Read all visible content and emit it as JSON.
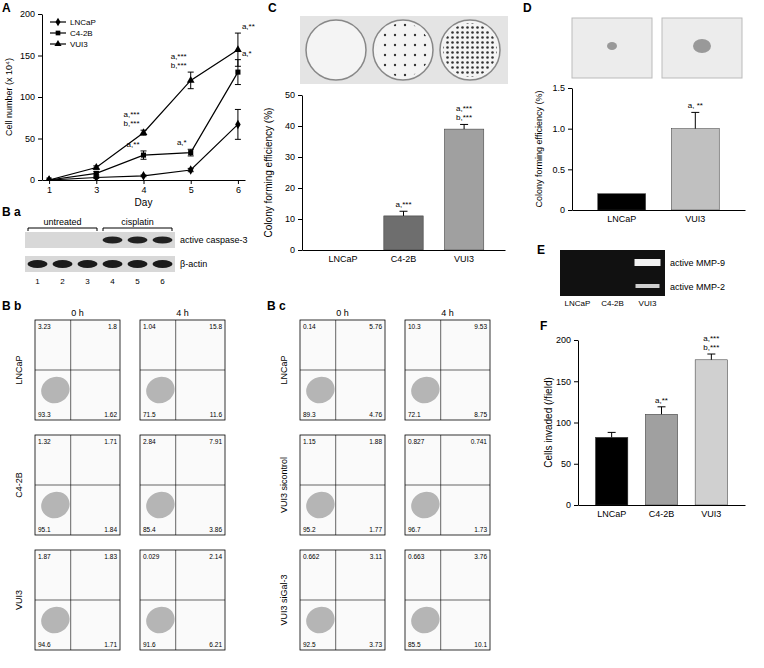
{
  "chart_data": [
    {
      "type": "line",
      "label": "A",
      "x_label": "Day",
      "y_label": "Cell number (x 10⁴)",
      "categories": [
        "1",
        "3",
        "4",
        "5",
        "6"
      ],
      "ylim": [
        0,
        200
      ],
      "yticks": [
        0,
        50,
        100,
        150,
        200
      ],
      "legend": "upper left",
      "series": [
        {
          "name": "LNCaP",
          "color": "#000000",
          "marker": "diamond",
          "values": [
            0,
            3,
            5,
            12,
            67
          ],
          "errors": [
            null,
            1,
            1,
            2,
            18
          ]
        },
        {
          "name": "C4-2B",
          "color": "#000000",
          "marker": "square",
          "values": [
            0,
            8,
            30,
            33,
            130
          ],
          "errors": [
            null,
            2,
            5,
            4,
            15
          ],
          "annotations": [
            null,
            null,
            [
              "a,**"
            ],
            [
              "a,*"
            ],
            [
              "a,*"
            ]
          ]
        },
        {
          "name": "VUI3",
          "color": "#000000",
          "marker": "triangle",
          "values": [
            0,
            15,
            57,
            120,
            157
          ],
          "errors": [
            null,
            2,
            3,
            10,
            20
          ],
          "annotations": [
            null,
            null,
            [
              "a,***",
              "b,***"
            ],
            [
              "a,***",
              "b,***"
            ],
            [
              "a,**"
            ]
          ]
        }
      ]
    },
    {
      "type": "bar",
      "label": "C",
      "y_label": "Colony forming efficiency (%)",
      "categories": [
        "LNCaP",
        "C4-2B",
        "VUI3"
      ],
      "values": [
        0,
        11,
        39
      ],
      "errors": [
        null,
        1.5,
        1.5
      ],
      "colors": [
        "#000000",
        "#6e6e6e",
        "#a0a0a0"
      ],
      "annotations": [
        null,
        [
          "a,***"
        ],
        [
          "a,***",
          "b,***"
        ]
      ],
      "ylim": [
        0,
        50
      ],
      "yticks": [
        0,
        10,
        20,
        30,
        40,
        50
      ]
    },
    {
      "type": "bar",
      "label": "D",
      "y_label": "Colony forming efficiency (%)",
      "categories": [
        "LNCaP",
        "VUI3"
      ],
      "values": [
        0.2,
        1.0
      ],
      "errors": [
        null,
        0.2
      ],
      "colors": [
        "#000000",
        "#c0c0c0"
      ],
      "annotations": [
        null,
        [
          "a, **"
        ]
      ],
      "ylim": [
        0,
        1.5
      ],
      "yticks": [
        0,
        0.5,
        {
          "value": 1,
          "label": "1.0"
        },
        1.5
      ]
    },
    {
      "type": "bar",
      "label": "F",
      "y_label": "Cells invaded (/field)",
      "categories": [
        "LNCaP",
        "C4-2B",
        "VUI3"
      ],
      "values": [
        82,
        110,
        176
      ],
      "errors": [
        6,
        9,
        7
      ],
      "colors": [
        "#000000",
        "#a0a0a0",
        "#d0d0d0"
      ],
      "annotations": [
        null,
        [
          "a,**"
        ],
        [
          "a,***",
          "b,***"
        ]
      ],
      "ylim": [
        0,
        200
      ],
      "yticks": [
        0,
        50,
        100,
        150,
        200
      ]
    }
  ],
  "blot": {
    "label": "B a",
    "groups": [
      "untreated",
      "cisplatin"
    ],
    "lanes": [
      "1",
      "2",
      "3",
      "4",
      "5",
      "6"
    ],
    "bands": [
      "active caspase-3",
      "β-actin"
    ]
  },
  "flow": [
    {
      "label": "B b",
      "columns": [
        "0 h",
        "4 h"
      ],
      "rows": [
        {
          "name": "LNCaP",
          "quadrants": [
            [
              "3.23",
              "1.8",
              "93.3",
              "1.62"
            ],
            [
              "1.04",
              "15.8",
              "71.5",
              "11.6"
            ]
          ]
        },
        {
          "name": "C4-2B",
          "quadrants": [
            [
              "1.32",
              "1.71",
              "95.1",
              "1.84"
            ],
            [
              "2.84",
              "7.91",
              "85.4",
              "3.86"
            ]
          ]
        },
        {
          "name": "VUI3",
          "quadrants": [
            [
              "1.87",
              "1.83",
              "94.6",
              "1.71"
            ],
            [
              "0.029",
              "2.14",
              "91.6",
              "6.21"
            ]
          ]
        }
      ]
    },
    {
      "label": "B c",
      "columns": [
        "0 h",
        "4 h"
      ],
      "rows": [
        {
          "name": "LNCaP",
          "quadrants": [
            [
              "0.14",
              "5.76",
              "89.3",
              "4.76"
            ],
            [
              "10.3",
              "9.53",
              "72.1",
              "8.75"
            ]
          ]
        },
        {
          "name": "VUI3 sicontrol",
          "quadrants": [
            [
              "1.15",
              "1.88",
              "95.2",
              "1.77"
            ],
            [
              "0.827",
              "0.741",
              "96.7",
              "1.73"
            ]
          ]
        },
        {
          "name": "VUI3 siGal-3",
          "quadrants": [
            [
              "0.662",
              "3.11",
              "92.5",
              "3.73"
            ],
            [
              "0.663",
              "3.76",
              "85.5",
              "10.1"
            ]
          ]
        }
      ]
    }
  ],
  "zymogram": {
    "label": "E",
    "lanes": [
      "LNCaP",
      "C4-2B",
      "VUI3"
    ],
    "bands": [
      "active MMP-9",
      "active MMP-2"
    ]
  }
}
